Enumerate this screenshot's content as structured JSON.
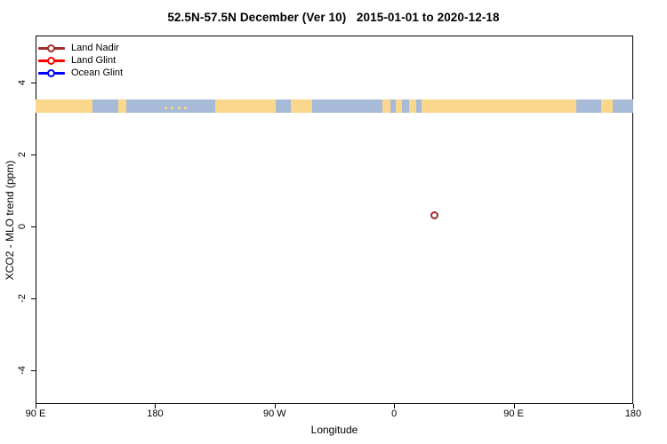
{
  "title": "52.5N-57.5N December (Ver 10)   2015-01-01 to 2020-12-18",
  "legend": {
    "items": [
      {
        "label": "Land Nadir",
        "color": "#A52A2A"
      },
      {
        "label": "Land Glint",
        "color": "#FF0000"
      },
      {
        "label": "Ocean Glint",
        "color": "#0000FF"
      }
    ]
  },
  "axes": {
    "x": {
      "label": "Longitude",
      "ticks": [
        {
          "axis_lon": 90,
          "label": "90 E"
        },
        {
          "axis_lon": 180,
          "label": "180"
        },
        {
          "axis_lon": 270,
          "label": "90 W"
        },
        {
          "axis_lon": 360,
          "label": "0"
        },
        {
          "axis_lon": 450,
          "label": "90 E"
        },
        {
          "axis_lon": 540,
          "label": "180"
        }
      ]
    },
    "y": {
      "label": "XCO2 - MLO trend (ppm)",
      "ticks": [
        {
          "value": 4,
          "label": "4"
        },
        {
          "value": 2,
          "label": "2"
        },
        {
          "value": 0,
          "label": "0"
        },
        {
          "value": -2,
          "label": "-2"
        },
        {
          "value": -4,
          "label": "-4"
        }
      ]
    }
  },
  "map_strip": {
    "description": "world land/ocean band for latitude 52.5N-57.5N drawn across the longitude axis near y = 3.35 ppm",
    "land_color": "#FAD78C",
    "ocean_color": "#A7BAD8",
    "segments": [
      {
        "type": "land",
        "lon0": 90,
        "lon1": 133
      },
      {
        "type": "ocean",
        "lon0": 133,
        "lon1": 152
      },
      {
        "type": "land",
        "lon0": 152,
        "lon1": 158
      },
      {
        "type": "ocean",
        "lon0": 158,
        "lon1": 225
      },
      {
        "type": "land",
        "lon0": 225,
        "lon1": 271
      },
      {
        "type": "ocean",
        "lon0": 271,
        "lon1": 282
      },
      {
        "type": "land",
        "lon0": 282,
        "lon1": 298
      },
      {
        "type": "ocean",
        "lon0": 298,
        "lon1": 351
      },
      {
        "type": "land",
        "lon0": 351,
        "lon1": 357
      },
      {
        "type": "ocean",
        "lon0": 357,
        "lon1": 361
      },
      {
        "type": "land",
        "lon0": 361,
        "lon1": 366
      },
      {
        "type": "ocean",
        "lon0": 366,
        "lon1": 371
      },
      {
        "type": "land",
        "lon0": 371,
        "lon1": 377
      },
      {
        "type": "ocean",
        "lon0": 377,
        "lon1": 381
      },
      {
        "type": "land",
        "lon0": 381,
        "lon1": 497
      },
      {
        "type": "ocean",
        "lon0": 497,
        "lon1": 516
      },
      {
        "type": "land",
        "lon0": 516,
        "lon1": 525
      },
      {
        "type": "ocean",
        "lon0": 525,
        "lon1": 540
      }
    ],
    "islands": [
      {
        "axis_lon": 187
      },
      {
        "axis_lon": 192
      },
      {
        "axis_lon": 197
      },
      {
        "axis_lon": 202
      }
    ]
  },
  "chart_data": {
    "type": "scatter",
    "title": "52.5N-57.5N December (Ver 10)   2015-01-01 to 2020-12-18",
    "xlabel": "Longitude",
    "ylabel": "XCO2 - MLO trend (ppm)",
    "xlim_axis_lon": [
      90,
      540
    ],
    "ylim": [
      -5.1,
      5.0
    ],
    "grid": false,
    "legend_position": "top-left",
    "series": [
      {
        "name": "Land Nadir",
        "color": "#A52A2A",
        "marker": "open-circle",
        "points": [
          {
            "axis_lon": 391,
            "longitude_label": "31 E",
            "value": 0.3
          }
        ]
      },
      {
        "name": "Land Glint",
        "color": "#FF0000",
        "marker": "open-circle",
        "points": []
      },
      {
        "name": "Ocean Glint",
        "color": "#0000FF",
        "marker": "open-circle",
        "points": []
      }
    ]
  }
}
